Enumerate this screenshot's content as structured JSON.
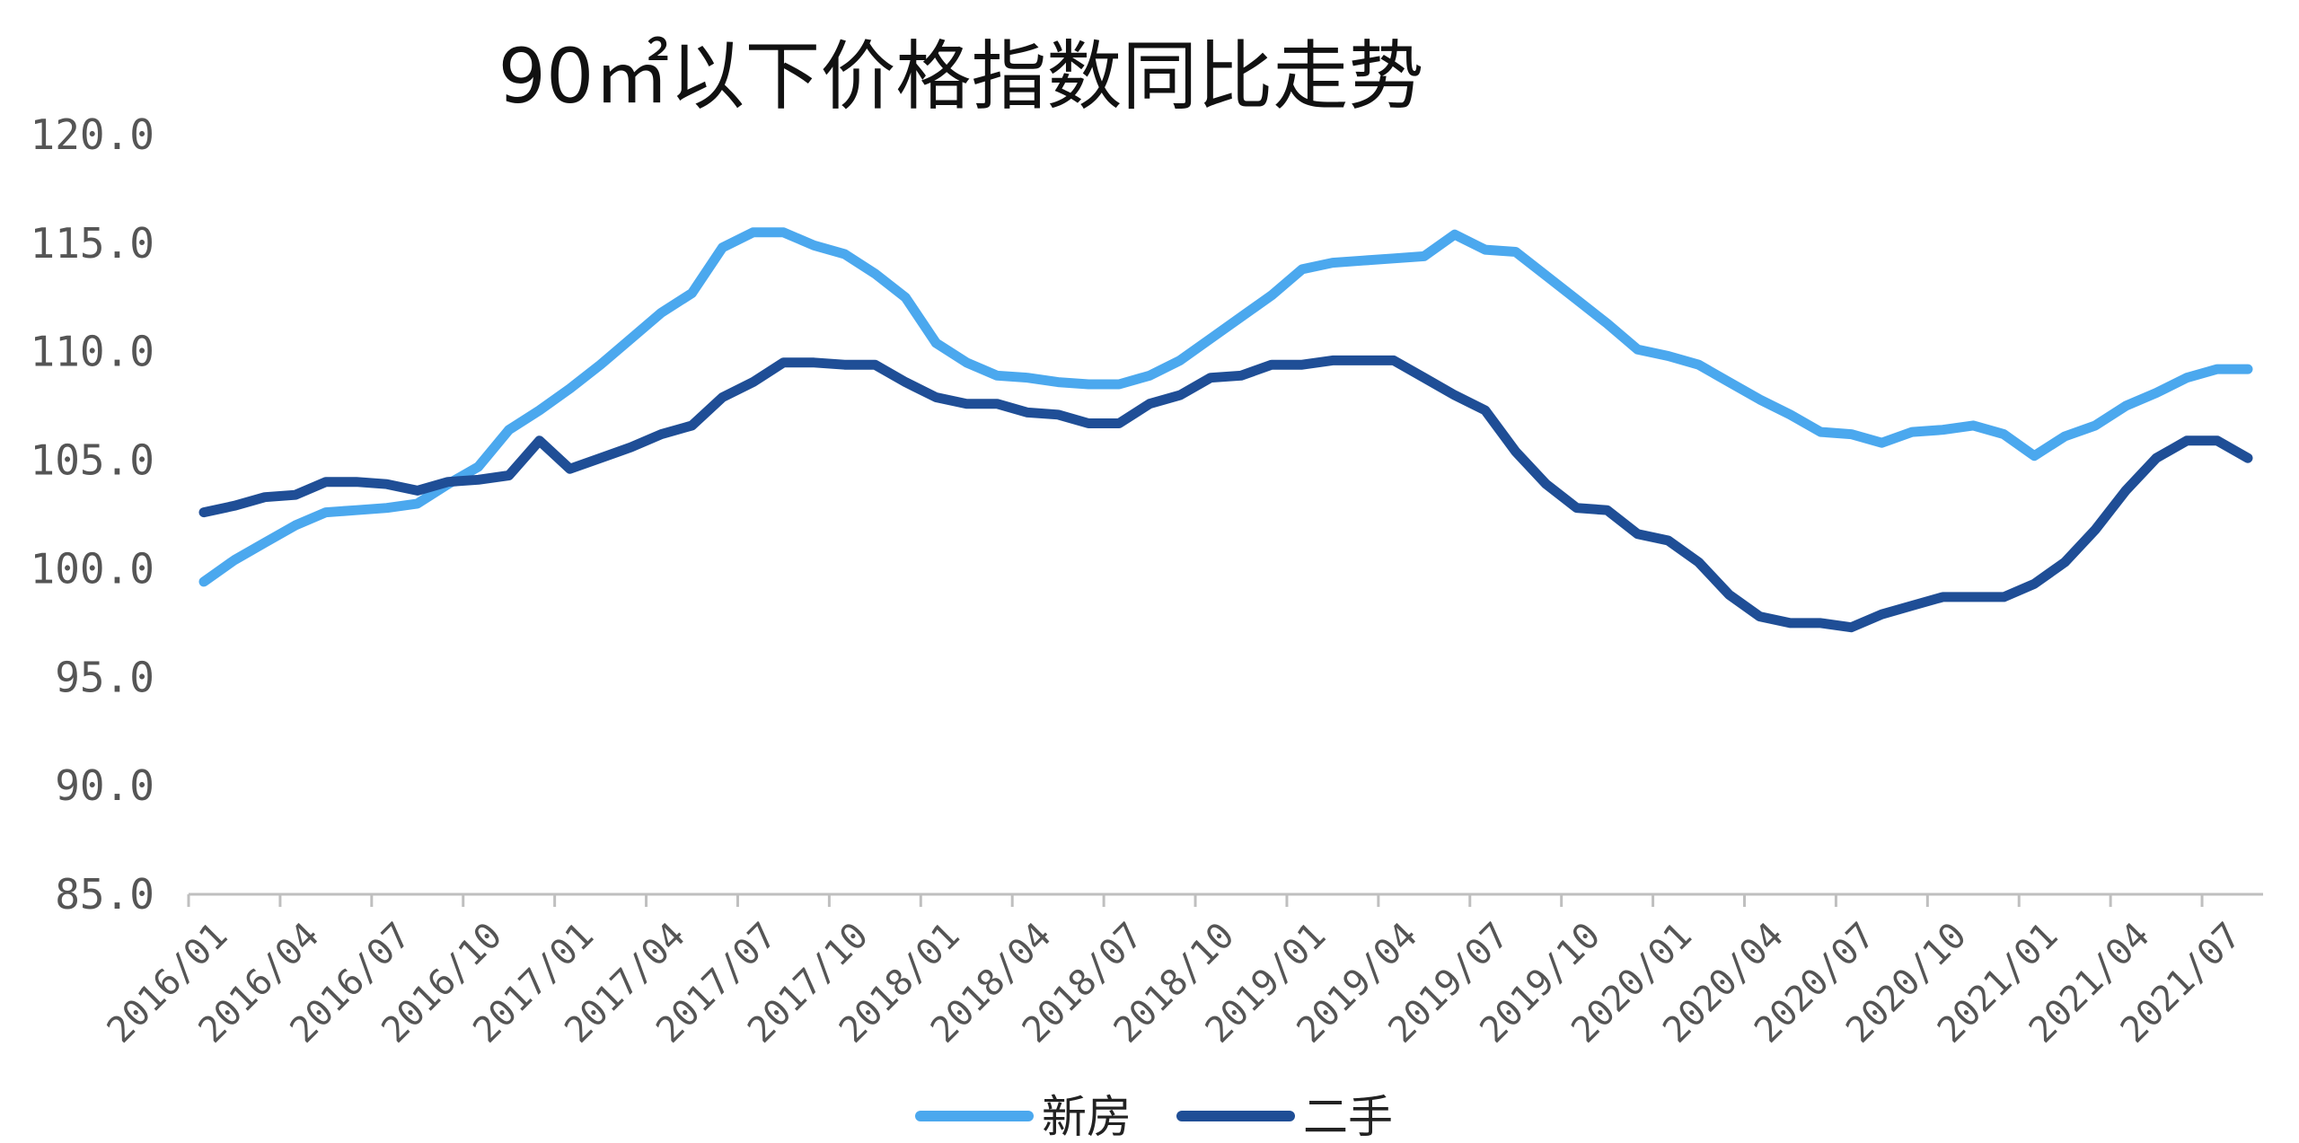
{
  "chart_data": {
    "type": "line",
    "title": "90㎡以下价格指数同比走势",
    "xlabel": "",
    "ylabel": "",
    "ylim": [
      85,
      120
    ],
    "y_ticks": [
      "120.0",
      "115.0",
      "110.0",
      "105.0",
      "100.0",
      "95.0",
      "90.0",
      "85.0"
    ],
    "x_tick_labels": [
      "2016/01",
      "2016/04",
      "2016/07",
      "2016/10",
      "2017/01",
      "2017/04",
      "2017/07",
      "2017/10",
      "2018/01",
      "2018/04",
      "2018/07",
      "2018/10",
      "2019/01",
      "2019/04",
      "2019/07",
      "2019/10",
      "2020/01",
      "2020/04",
      "2020/07",
      "2020/10",
      "2021/01",
      "2021/04",
      "2021/07"
    ],
    "x": [
      "2016/01",
      "2016/02",
      "2016/03",
      "2016/04",
      "2016/05",
      "2016/06",
      "2016/07",
      "2016/08",
      "2016/09",
      "2016/10",
      "2016/11",
      "2016/12",
      "2017/01",
      "2017/02",
      "2017/03",
      "2017/04",
      "2017/05",
      "2017/06",
      "2017/07",
      "2017/08",
      "2017/09",
      "2017/10",
      "2017/11",
      "2017/12",
      "2018/01",
      "2018/02",
      "2018/03",
      "2018/04",
      "2018/05",
      "2018/06",
      "2018/07",
      "2018/08",
      "2018/09",
      "2018/10",
      "2018/11",
      "2018/12",
      "2019/01",
      "2019/02",
      "2019/03",
      "2019/04",
      "2019/05",
      "2019/06",
      "2019/07",
      "2019/08",
      "2019/09",
      "2019/10",
      "2019/11",
      "2019/12",
      "2020/01",
      "2020/02",
      "2020/03",
      "2020/04",
      "2020/05",
      "2020/06",
      "2020/07",
      "2020/08",
      "2020/09",
      "2020/10",
      "2020/11",
      "2020/12",
      "2021/01",
      "2021/02",
      "2021/03",
      "2021/04",
      "2021/05",
      "2021/06",
      "2021/07",
      "2021/08"
    ],
    "series": [
      {
        "name": "新房",
        "color": "#4BA8EE",
        "values": [
          99.4,
          100.4,
          101.2,
          102.0,
          102.6,
          102.7,
          102.8,
          103.0,
          103.9,
          104.7,
          106.4,
          107.3,
          108.3,
          109.4,
          110.6,
          111.8,
          112.7,
          114.8,
          115.5,
          115.5,
          114.9,
          114.5,
          113.6,
          112.5,
          110.4,
          109.5,
          108.9,
          108.8,
          108.6,
          108.5,
          108.5,
          108.9,
          109.6,
          110.6,
          111.6,
          112.6,
          113.8,
          114.1,
          114.2,
          114.3,
          114.4,
          115.4,
          114.7,
          114.6,
          113.5,
          112.4,
          111.3,
          110.1,
          109.8,
          109.4,
          108.6,
          107.8,
          107.1,
          106.3,
          106.2,
          105.8,
          106.3,
          106.4,
          106.6,
          106.2,
          105.2,
          106.1,
          106.6,
          107.5,
          108.1,
          108.8,
          109.2,
          109.2
        ]
      },
      {
        "name": "二手",
        "color": "#1F4E96",
        "values": [
          102.6,
          102.9,
          103.3,
          103.4,
          104.0,
          104.0,
          103.9,
          103.6,
          104.0,
          104.1,
          104.3,
          105.9,
          104.6,
          105.1,
          105.6,
          106.2,
          106.6,
          107.9,
          108.6,
          109.5,
          109.5,
          109.4,
          109.4,
          108.6,
          107.9,
          107.6,
          107.6,
          107.2,
          107.1,
          106.7,
          106.7,
          107.6,
          108.0,
          108.8,
          108.9,
          109.4,
          109.4,
          109.6,
          109.6,
          109.6,
          108.8,
          108.0,
          107.3,
          105.4,
          103.9,
          102.8,
          102.7,
          101.6,
          101.3,
          100.3,
          98.8,
          97.8,
          97.5,
          97.5,
          97.3,
          97.9,
          98.3,
          98.7,
          98.7,
          98.7,
          99.3,
          100.3,
          101.8,
          103.6,
          105.1,
          105.9,
          105.9,
          105.1
        ]
      }
    ],
    "legend_position": "bottom-center",
    "grid": false
  }
}
